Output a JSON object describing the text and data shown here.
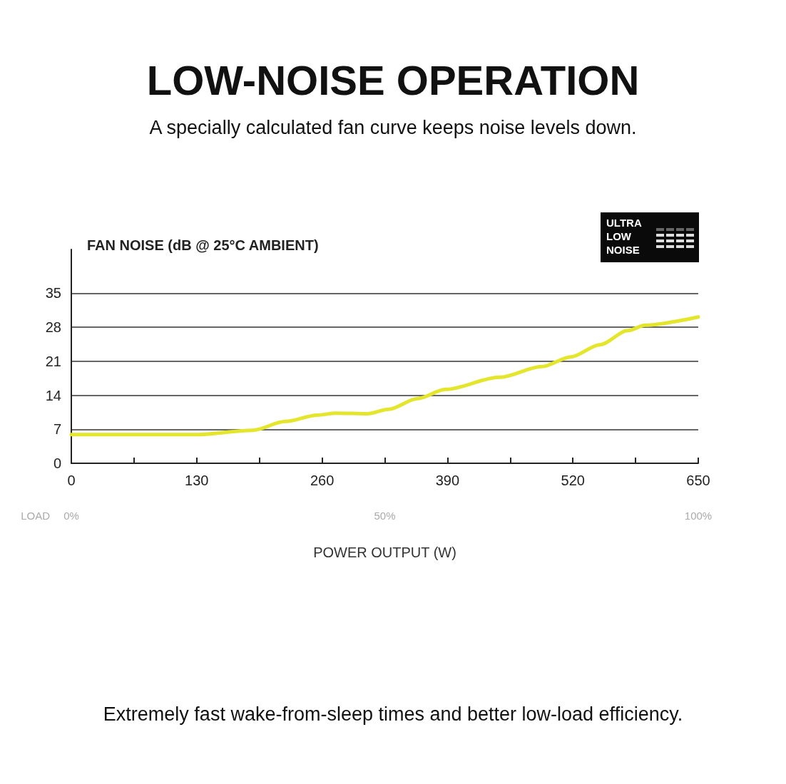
{
  "chart_data": {
    "type": "line",
    "title": "LOW-NOISE OPERATION",
    "subtitle": "A specially calculated fan curve keeps noise levels down.",
    "ylabel": "FAN NOISE (dB @ 25°C AMBIENT)",
    "xlabel": "POWER OUTPUT (W)",
    "x2label": "LOAD",
    "annotations": [
      "ULTRA\nLOW\nNOISE",
      "Extremely fast wake-from-sleep times and better low-load efficiency."
    ],
    "x": [
      0,
      130,
      188,
      222,
      255,
      274,
      307,
      329,
      359,
      388,
      444,
      488,
      518,
      548,
      577,
      595,
      650
    ],
    "series": [
      {
        "color": "#e3e62c",
        "values": [
          5.9,
          5.9,
          6.8,
          8.6,
          9.9,
          10.3,
          10.2,
          11.1,
          13.3,
          15.2,
          17.7,
          19.9,
          21.9,
          24.4,
          27.3,
          28.4,
          30.1
        ]
      }
    ],
    "xlim": [
      0,
      650
    ],
    "xticks": [
      0,
      {
        "value": 65,
        "label": null
      },
      130,
      {
        "value": 195,
        "label": null
      },
      260,
      {
        "value": 325,
        "label": null
      },
      390,
      {
        "value": 455,
        "label": null
      },
      520,
      {
        "value": 585,
        "label": null
      },
      650
    ],
    "x2lim": [
      0,
      100
    ],
    "x2ticks": [
      {
        "value": 0,
        "label": "0%"
      },
      {
        "value": 50,
        "label": "50%"
      },
      {
        "value": 100,
        "label": "100%"
      }
    ],
    "ylim": [
      0,
      44
    ],
    "yticks": [
      0,
      7,
      14,
      21,
      28,
      35
    ],
    "grid": "y",
    "marker": "none",
    "line_style": "solid"
  }
}
